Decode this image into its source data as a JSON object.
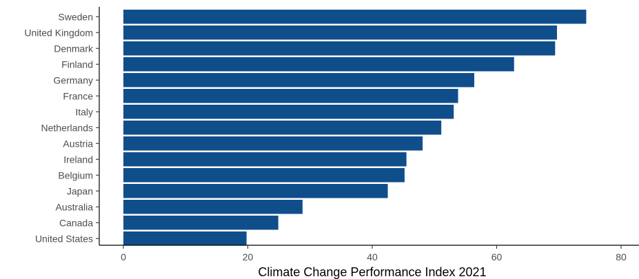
{
  "chart_data": {
    "type": "bar",
    "orientation": "horizontal",
    "categories": [
      "Sweden",
      "United Kingdom",
      "Denmark",
      "Finland",
      "Germany",
      "France",
      "Italy",
      "Netherlands",
      "Austria",
      "Ireland",
      "Belgium",
      "Japan",
      "Australia",
      "Canada",
      "United States"
    ],
    "values": [
      74.4,
      69.7,
      69.4,
      62.8,
      56.4,
      53.8,
      53.1,
      51.1,
      48.1,
      45.5,
      45.2,
      42.5,
      28.8,
      24.9,
      19.8
    ],
    "xlabel": "Climate Change Performance Index 2021",
    "ylabel": "",
    "xlim": [
      0,
      80
    ],
    "xticks": [
      0,
      20,
      40,
      60,
      80
    ],
    "grid": false,
    "bar_color": "#104e8b"
  }
}
